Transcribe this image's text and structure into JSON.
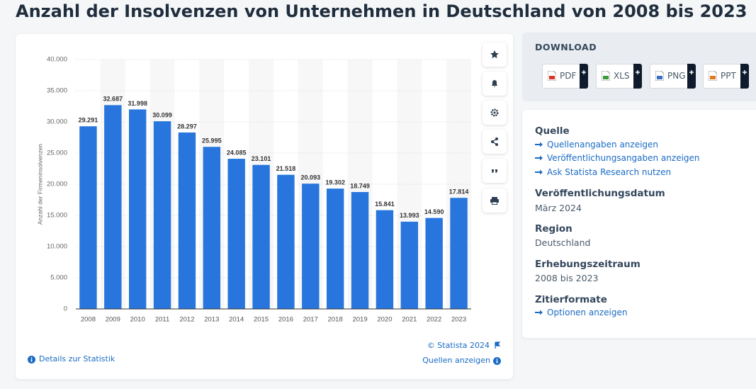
{
  "header": {
    "title": "Anzahl der Insolvenzen von Unternehmen in Deutschland von 2008 bis 2023"
  },
  "chart_data": {
    "type": "bar",
    "y_label": "Anzahl der Firmeninsolvenzen",
    "categories": [
      "2008",
      "2009",
      "2010",
      "2011",
      "2012",
      "2013",
      "2014",
      "2015",
      "2016",
      "2017",
      "2018",
      "2019",
      "2020",
      "2021",
      "2022",
      "2023"
    ],
    "values": [
      29291,
      32687,
      31998,
      30099,
      28297,
      25995,
      24085,
      23101,
      21518,
      20093,
      19302,
      18749,
      15841,
      13993,
      14590,
      17814
    ],
    "value_labels": [
      "29.291",
      "32.687",
      "31.998",
      "30.099",
      "28.297",
      "25.995",
      "24.085",
      "23.101",
      "21.518",
      "20.093",
      "19.302",
      "18.749",
      "15.841",
      "13.993",
      "14.590",
      "17.814"
    ],
    "color": "#2876dd",
    "ylim": [
      0,
      40000
    ],
    "yticks": [
      0,
      {
        "value": 5000,
        "label": "5.000"
      },
      {
        "value": 10000,
        "label": "10.000"
      },
      {
        "value": 15000,
        "label": "15.000"
      },
      {
        "value": 20000,
        "label": "20.000"
      },
      {
        "value": 25000,
        "label": "25.000"
      },
      {
        "value": 30000,
        "label": "30.000"
      },
      {
        "value": 35000,
        "label": "35.000"
      },
      {
        "value": 40000,
        "label": "40.000"
      }
    ],
    "grid": true
  },
  "chart_footer": {
    "copyright": "© Statista 2024",
    "details": "Details zur Statistik",
    "sources": "Quellen anzeigen"
  },
  "download": {
    "title": "DOWNLOAD",
    "formats": [
      "PDF",
      "XLS",
      "PNG",
      "PPT"
    ]
  },
  "info": {
    "source": {
      "heading": "Quelle",
      "links": [
        "Quellenangaben anzeigen",
        "Veröffentlichungsangaben anzeigen",
        "Ask Statista Research nutzen"
      ]
    },
    "published": {
      "heading": "Veröffentlichungsdatum",
      "text": "März 2024"
    },
    "region": {
      "heading": "Region",
      "text": "Deutschland"
    },
    "period": {
      "heading": "Erhebungszeitraum",
      "text": "2008 bis 2023"
    },
    "citation": {
      "heading": "Zitierformate",
      "link": "Optionen anzeigen"
    }
  }
}
